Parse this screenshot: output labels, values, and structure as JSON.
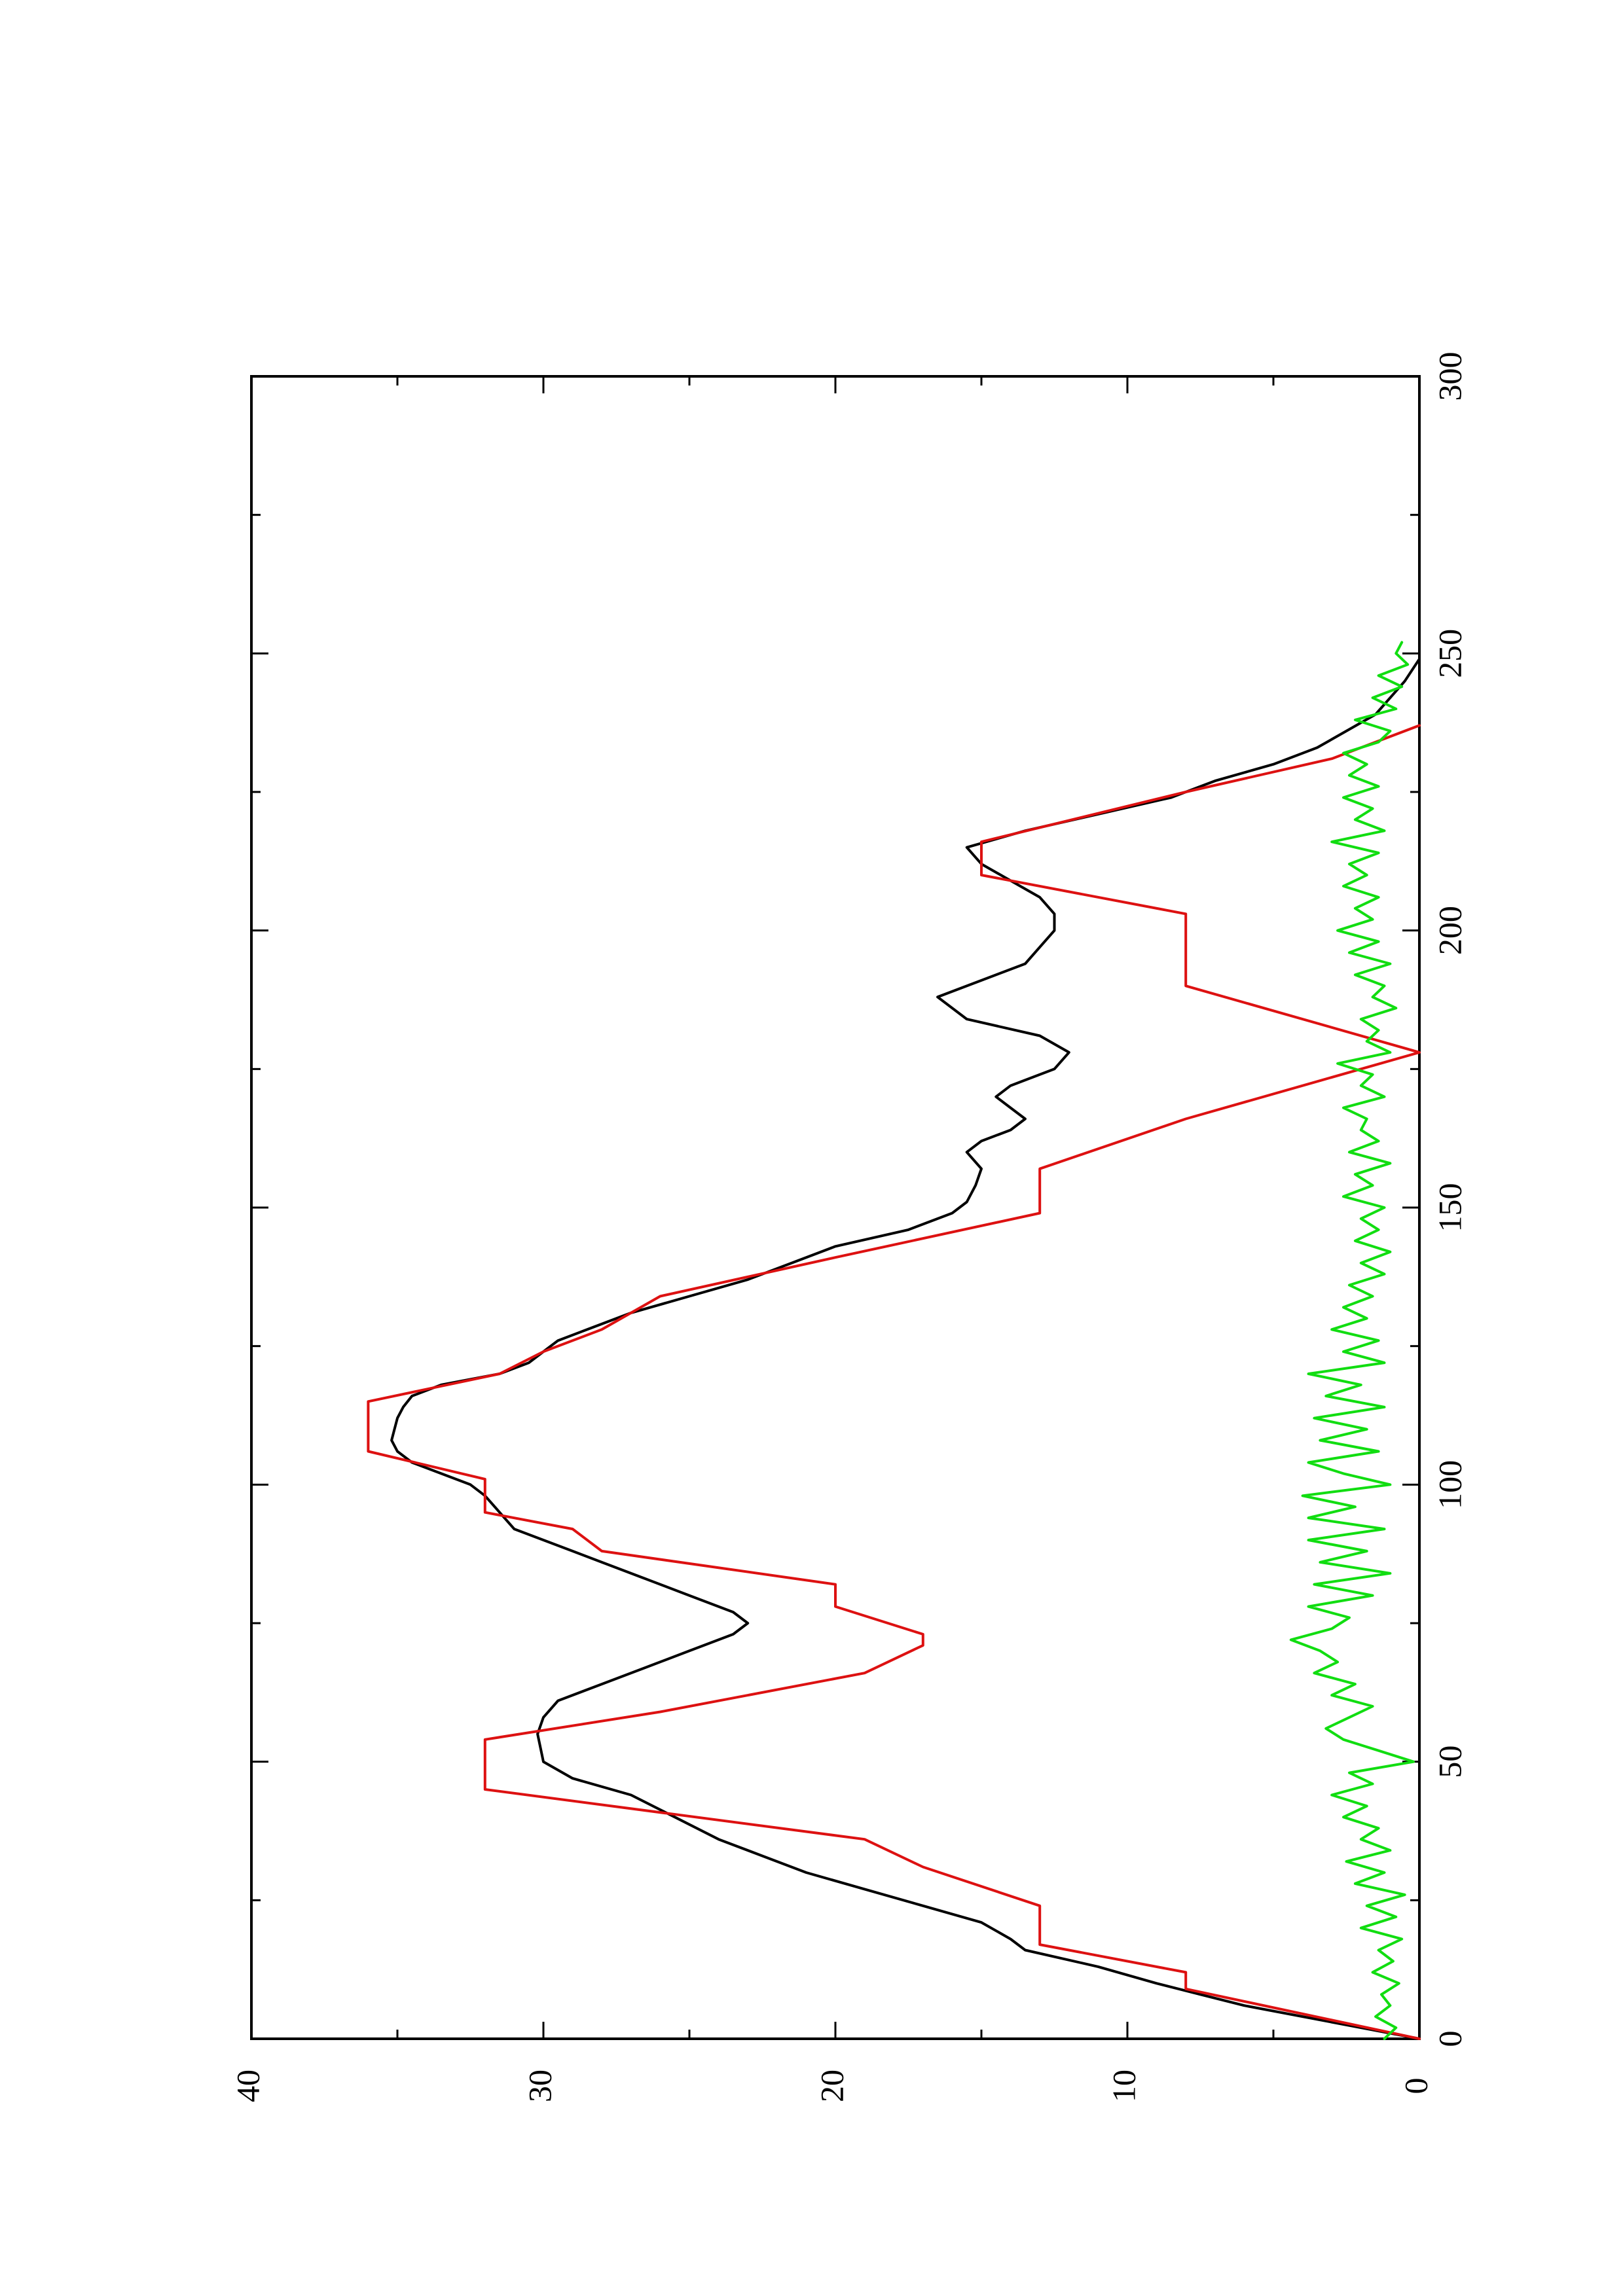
{
  "chart_data": {
    "type": "line",
    "title": "",
    "xlabel": "",
    "ylabel": "",
    "orientation": "rotated 90 degrees counter-clockwise (x axis runs bottom-to-top, y axis runs right-to-left)",
    "xlim": [
      0,
      300
    ],
    "ylim": [
      0,
      40
    ],
    "x_major_ticks": [
      0,
      50,
      100,
      150,
      200,
      250,
      300
    ],
    "x_minor_ticks": [
      25,
      75,
      125,
      175,
      225,
      275
    ],
    "y_major_ticks": [
      0,
      10,
      20,
      30,
      40
    ],
    "y_minor_ticks": [
      5,
      15,
      25,
      35
    ],
    "grid": false,
    "legend": "none",
    "colors": {
      "black": "#000000",
      "red": "#dd1111",
      "green": "#11dd11"
    },
    "series": [
      {
        "color": "#000000",
        "style": "smooth line",
        "x": [
          0,
          3,
          6,
          8,
          10,
          13,
          16,
          18,
          21,
          24,
          27,
          30,
          33,
          36,
          40,
          44,
          47,
          50,
          55,
          58,
          61,
          64,
          67,
          70,
          73,
          75,
          77,
          80,
          83,
          86,
          88,
          90,
          92,
          95,
          98,
          100,
          102,
          104,
          106,
          108,
          110,
          112,
          114,
          116,
          118,
          120,
          122,
          124,
          126,
          128,
          131,
          134,
          137,
          140,
          143,
          146,
          149,
          151,
          154,
          157,
          160,
          162,
          164,
          166,
          168,
          170,
          172,
          175,
          178,
          181,
          184,
          188,
          191,
          194,
          197,
          200,
          203,
          206,
          209,
          212,
          215,
          218,
          221,
          224,
          227,
          230,
          233,
          236,
          239,
          242,
          245,
          249,
          252
        ],
        "y": [
          0,
          3,
          6,
          7.5,
          9,
          11,
          13.5,
          14,
          15,
          17,
          19,
          21,
          22.5,
          24,
          25.5,
          27,
          29,
          30,
          30.2,
          30,
          29.5,
          28,
          26.5,
          25,
          23.5,
          23,
          23.5,
          25,
          26.5,
          28,
          29,
          30,
          31,
          31.5,
          32,
          32.5,
          33.5,
          34.5,
          35,
          35.2,
          35.1,
          35,
          34.8,
          34.5,
          33.5,
          31.5,
          30.5,
          30,
          29.5,
          28.5,
          27,
          25,
          23,
          21.5,
          20,
          17.5,
          16,
          15.5,
          15.2,
          15,
          15.5,
          15,
          14,
          13.5,
          14,
          14.5,
          14,
          12.5,
          12,
          13,
          15.5,
          16.5,
          15,
          13.5,
          13,
          12.5,
          12.5,
          13,
          14,
          15,
          15.5,
          13.5,
          11,
          8.5,
          7,
          5,
          3.5,
          2.5,
          1.5,
          1,
          0.5,
          0,
          0
        ]
      },
      {
        "color": "#dd1111",
        "style": "piecewise linear with flat steps",
        "x": [
          0,
          9,
          12,
          17,
          24,
          31,
          36,
          45,
          54,
          59,
          66,
          71,
          73,
          78,
          82,
          88,
          92,
          95,
          101,
          106,
          115,
          120,
          124,
          128,
          134,
          141,
          149,
          157,
          166,
          178,
          190,
          203,
          210,
          216,
          225,
          231,
          237
        ],
        "y": [
          0,
          8,
          8,
          13,
          13,
          17,
          19,
          32,
          32,
          26,
          19,
          17,
          17,
          20,
          20,
          28,
          29,
          32,
          32,
          36,
          36,
          31.5,
          30,
          28,
          26,
          20,
          13,
          13,
          8,
          0,
          8,
          8,
          15,
          15,
          8,
          3,
          0
        ]
      },
      {
        "color": "#11dd11",
        "style": "noisy line",
        "x": [
          0,
          2,
          4,
          6,
          8,
          10,
          12,
          14,
          16,
          18,
          20,
          22,
          24,
          26,
          28,
          30,
          32,
          34,
          36,
          38,
          40,
          42,
          44,
          46,
          48,
          50,
          52,
          54,
          56,
          58,
          60,
          62,
          64,
          66,
          68,
          70,
          72,
          74,
          76,
          78,
          80,
          82,
          84,
          86,
          88,
          90,
          92,
          94,
          96,
          98,
          100,
          102,
          104,
          106,
          108,
          110,
          112,
          114,
          116,
          118,
          120,
          122,
          124,
          126,
          128,
          130,
          132,
          134,
          136,
          138,
          140,
          142,
          144,
          146,
          148,
          150,
          152,
          154,
          156,
          158,
          160,
          162,
          164,
          166,
          168,
          170,
          172,
          174,
          176,
          178,
          180,
          182,
          184,
          186,
          188,
          190,
          192,
          194,
          196,
          198,
          200,
          202,
          204,
          206,
          208,
          210,
          212,
          214,
          216,
          218,
          220,
          222,
          224,
          226,
          228,
          230,
          232,
          234,
          236,
          238,
          240,
          242,
          244,
          246,
          248,
          250,
          252
        ],
        "y": [
          1.2,
          0.8,
          1.5,
          1.0,
          1.3,
          0.7,
          1.6,
          0.9,
          1.4,
          0.6,
          2.0,
          0.8,
          1.8,
          0.5,
          2.2,
          1.2,
          2.5,
          1.0,
          2.0,
          1.4,
          2.6,
          1.8,
          3.0,
          1.6,
          2.4,
          0.2,
          1.4,
          2.6,
          3.2,
          2.4,
          1.6,
          3.0,
          2.2,
          3.6,
          2.8,
          3.4,
          4.4,
          3.0,
          2.4,
          3.8,
          1.6,
          3.6,
          1.0,
          3.4,
          1.8,
          3.8,
          1.2,
          3.8,
          2.2,
          4.0,
          1.0,
          2.6,
          3.8,
          1.4,
          3.4,
          1.8,
          3.6,
          1.2,
          3.2,
          2.0,
          3.8,
          1.2,
          2.6,
          1.4,
          3.0,
          1.8,
          2.6,
          1.6,
          2.4,
          1.2,
          2.0,
          1.0,
          2.2,
          1.4,
          2.0,
          1.2,
          2.6,
          1.6,
          2.2,
          1.0,
          2.4,
          1.4,
          2.0,
          1.8,
          2.6,
          1.2,
          2.0,
          1.6,
          2.8,
          1.0,
          1.8,
          1.4,
          2.0,
          0.8,
          1.6,
          1.2,
          2.2,
          1.0,
          2.4,
          1.4,
          2.8,
          1.6,
          2.2,
          1.4,
          2.6,
          1.8,
          2.4,
          1.4,
          3.0,
          1.2,
          2.2,
          1.6,
          2.6,
          1.4,
          2.4,
          1.8,
          2.6,
          1.4,
          1.0,
          2.2,
          0.8,
          1.6,
          0.6,
          1.4,
          0.4,
          0.8,
          0.6
        ]
      }
    ]
  }
}
